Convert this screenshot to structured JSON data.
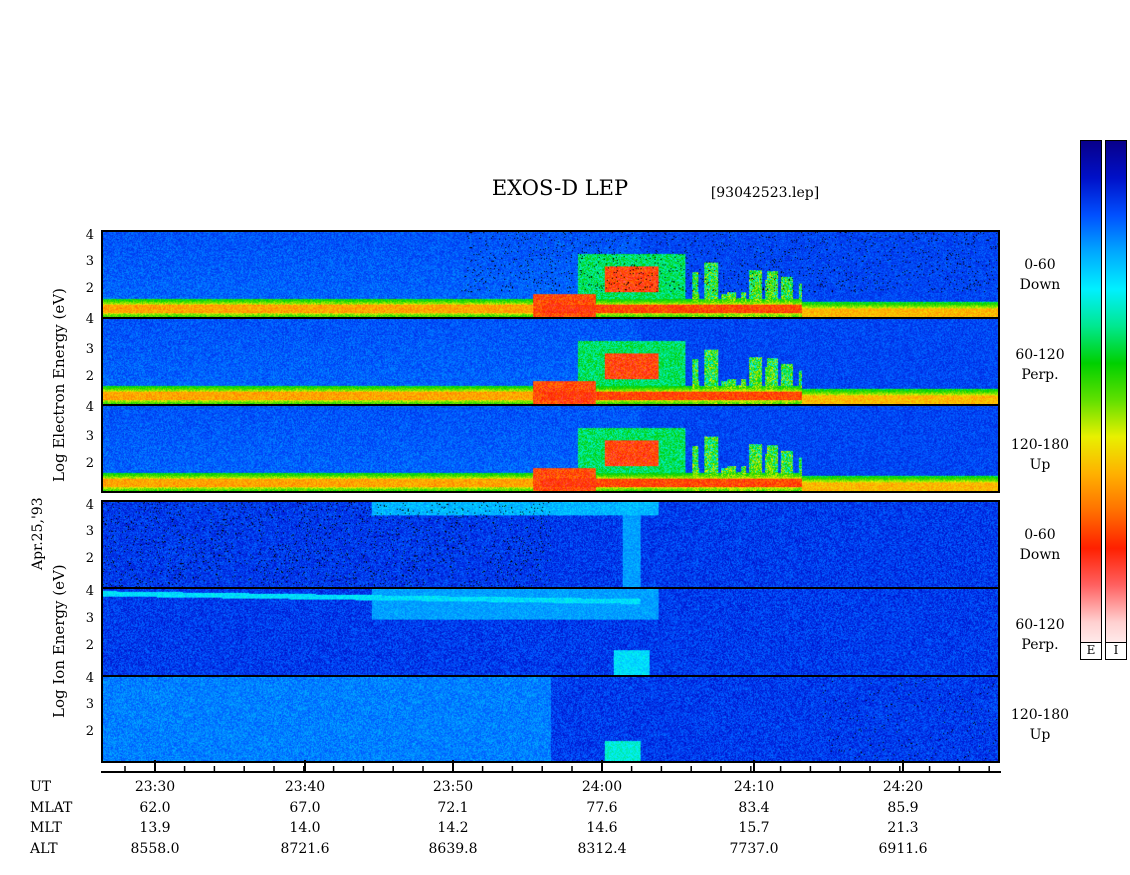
{
  "title": "EXOS-D LEP",
  "filename": "[93042523.lep]",
  "date_label": "Apr.25,'93",
  "colorbars": {
    "electron_label": "E",
    "ion_label": "I",
    "colors": [
      "#08008a",
      "#0010c8",
      "#0050ff",
      "#00a8ff",
      "#00f0ff",
      "#00e890",
      "#00d000",
      "#60e000",
      "#e8f000",
      "#ffb000",
      "#ff7000",
      "#ff2000",
      "#ff6060",
      "#ffd0d0",
      "#ffffff"
    ]
  },
  "electron_group": {
    "ylabel": "Log  Electron  Energy  (eV)",
    "panels": [
      {
        "label1": "0-60",
        "label2": "Down",
        "yticks": [
          "4",
          "3",
          "2"
        ]
      },
      {
        "label1": "60-120",
        "label2": "Perp.",
        "yticks": [
          "4",
          "3",
          "2"
        ]
      },
      {
        "label1": "120-180",
        "label2": "Up",
        "yticks": [
          "4",
          "3",
          "2"
        ]
      }
    ]
  },
  "ion_group": {
    "ylabel": "Log  Ion  Energy  (eV)",
    "panels": [
      {
        "label1": "0-60",
        "label2": "Down",
        "yticks": [
          "4",
          "3",
          "2"
        ]
      },
      {
        "label1": "60-120",
        "label2": "Perp.",
        "yticks": [
          "4",
          "3",
          "2"
        ]
      },
      {
        "label1": "120-180",
        "label2": "Up",
        "yticks": [
          "4",
          "3",
          "2"
        ]
      }
    ]
  },
  "xaxis": {
    "row_names": [
      "UT",
      "MLAT",
      "MLT",
      "ALT"
    ],
    "ticks": [
      {
        "UT": "23:30",
        "MLAT": "62.0",
        "MLT": "13.9",
        "ALT": "8558.0"
      },
      {
        "UT": "23:40",
        "MLAT": "67.0",
        "MLT": "14.0",
        "ALT": "8721.6"
      },
      {
        "UT": "23:50",
        "MLAT": "72.1",
        "MLT": "14.2",
        "ALT": "8639.8"
      },
      {
        "UT": "24:00",
        "MLAT": "77.6",
        "MLT": "14.6",
        "ALT": "8312.4"
      },
      {
        "UT": "24:10",
        "MLAT": "83.4",
        "MLT": "15.7",
        "ALT": "7737.0"
      },
      {
        "UT": "24:20",
        "MLAT": "85.9",
        "MLT": "21.3",
        "ALT": "6911.6"
      }
    ]
  },
  "chart_data": {
    "type": "heatmap",
    "title": "EXOS-D LEP",
    "x_range_ut_minutes": [
      "23:25.5",
      "24:26"
    ],
    "y_range_log_energy_ev": [
      1.0,
      4.2
    ],
    "electron_features": {
      "low_energy_band_log_ev": 1.4,
      "band_rise_ut": "23:57",
      "burst_ut": [
        "23:58",
        "24:05"
      ],
      "burst_peak_log_ev": 2.3
    },
    "ion_features": {
      "perp_beam_start_log_ev": 4.0,
      "perp_beam_end_log_ev": 3.8,
      "spike_ut": "24:02"
    }
  }
}
